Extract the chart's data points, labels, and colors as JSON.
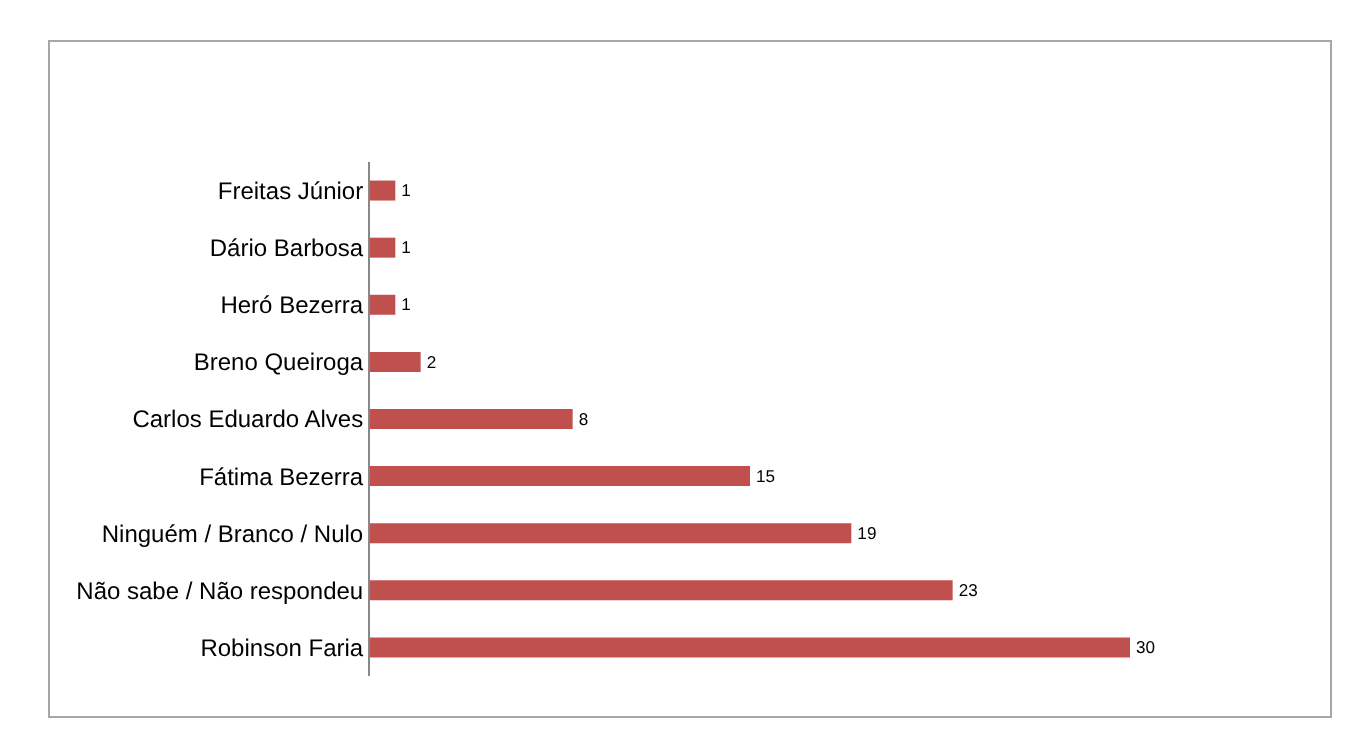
{
  "chart_data": {
    "type": "bar",
    "orientation": "horizontal",
    "categories": [
      "Freitas Júnior",
      "Dário Barbosa",
      "Heró Bezerra",
      "Breno Queiroga",
      "Carlos Eduardo Alves",
      "Fátima Bezerra",
      "Ninguém / Branco / Nulo",
      "Não sabe / Não respondeu",
      "Robinson Faria"
    ],
    "values": [
      1,
      1,
      1,
      2,
      8,
      15,
      19,
      23,
      30
    ],
    "color": "#c0504d",
    "data_labels": true,
    "tick_labels": "y",
    "grid": false,
    "legend": false
  }
}
